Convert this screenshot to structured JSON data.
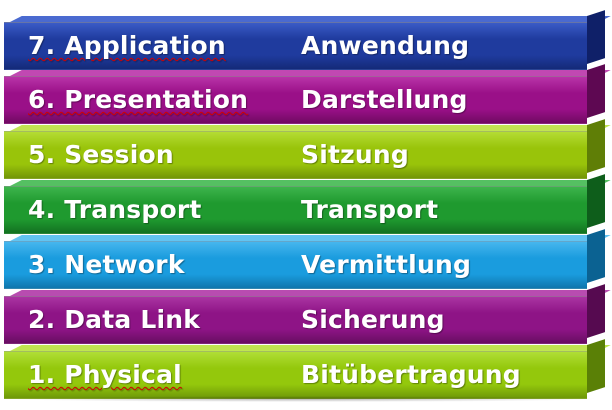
{
  "layers": [
    {
      "en": "7. Application",
      "de": "Anwendung",
      "color": "#1f3b9e"
    },
    {
      "en": "6. Presentation",
      "de": "Darstellung",
      "color": "#9a1088"
    },
    {
      "en": "5. Session",
      "de": "Sitzung",
      "color": "#99c40a"
    },
    {
      "en": "4. Transport",
      "de": "Transport",
      "color": "#1f9a2f"
    },
    {
      "en": "3. Network",
      "de": "Vermittlung",
      "color": "#1a9cde"
    },
    {
      "en": "2. Data Link",
      "de": "Sicherung",
      "color": "#8e1486"
    },
    {
      "en": "1. Physical",
      "de": "Bitübertragung",
      "color": "#94c80c"
    }
  ]
}
